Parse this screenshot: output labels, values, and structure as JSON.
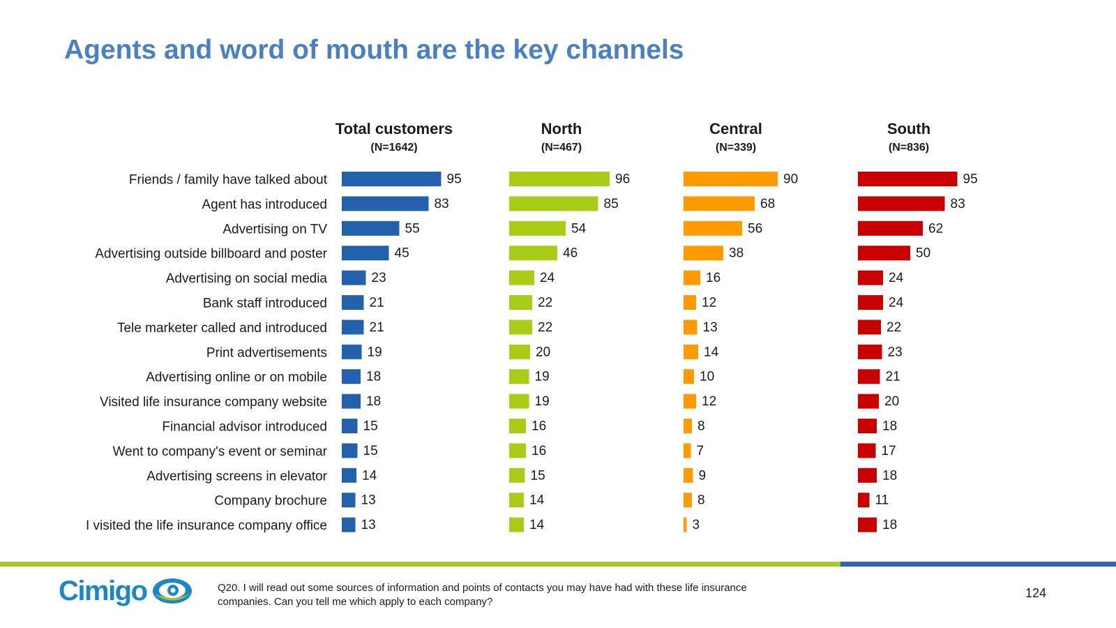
{
  "title": "Agents and word of mouth are the key channels",
  "chart_data": {
    "type": "bar",
    "orientation": "horizontal",
    "categories": [
      "Friends / family have talked about",
      "Agent has introduced",
      "Advertising on TV",
      "Advertising outside billboard and poster",
      "Advertising on social media",
      "Bank staff introduced",
      "Tele marketer called and introduced",
      "Print advertisements",
      "Advertising online or on mobile",
      "Visited life insurance company website",
      "Financial advisor introduced",
      "Went to company's event or seminar",
      "Advertising screens in elevator",
      "Company brochure",
      "I visited the life insurance company office"
    ],
    "series": [
      {
        "name": "Total customers",
        "subtitle": "(N=1642)",
        "color": "#2361ad",
        "values": [
          95,
          83,
          55,
          45,
          23,
          21,
          21,
          19,
          18,
          18,
          15,
          15,
          14,
          13,
          13
        ]
      },
      {
        "name": "North",
        "subtitle": "(N=467)",
        "color": "#a9cc17",
        "values": [
          96,
          85,
          54,
          46,
          24,
          22,
          22,
          20,
          19,
          19,
          16,
          16,
          15,
          14,
          14
        ]
      },
      {
        "name": "Central",
        "subtitle": "(N=339)",
        "color": "#ff9a00",
        "values": [
          90,
          68,
          56,
          38,
          16,
          12,
          13,
          14,
          10,
          12,
          8,
          7,
          9,
          8,
          3
        ]
      },
      {
        "name": "South",
        "subtitle": "(N=836)",
        "color": "#c90000",
        "values": [
          95,
          83,
          62,
          50,
          24,
          24,
          22,
          23,
          21,
          20,
          18,
          17,
          18,
          11,
          18
        ]
      }
    ],
    "xlim": [
      0,
      100
    ],
    "grid": false,
    "legend": "none"
  },
  "footer": {
    "logo_text": "Cimigo",
    "note": "Q20. I will read out some sources of information and points of contacts you may have had with these life insurance companies.  Can you tell me which apply to each company?",
    "page_number": "124",
    "colors": {
      "green": "#a8c62c",
      "blue": "#2e64ae",
      "logo": "#1a87c7"
    }
  }
}
